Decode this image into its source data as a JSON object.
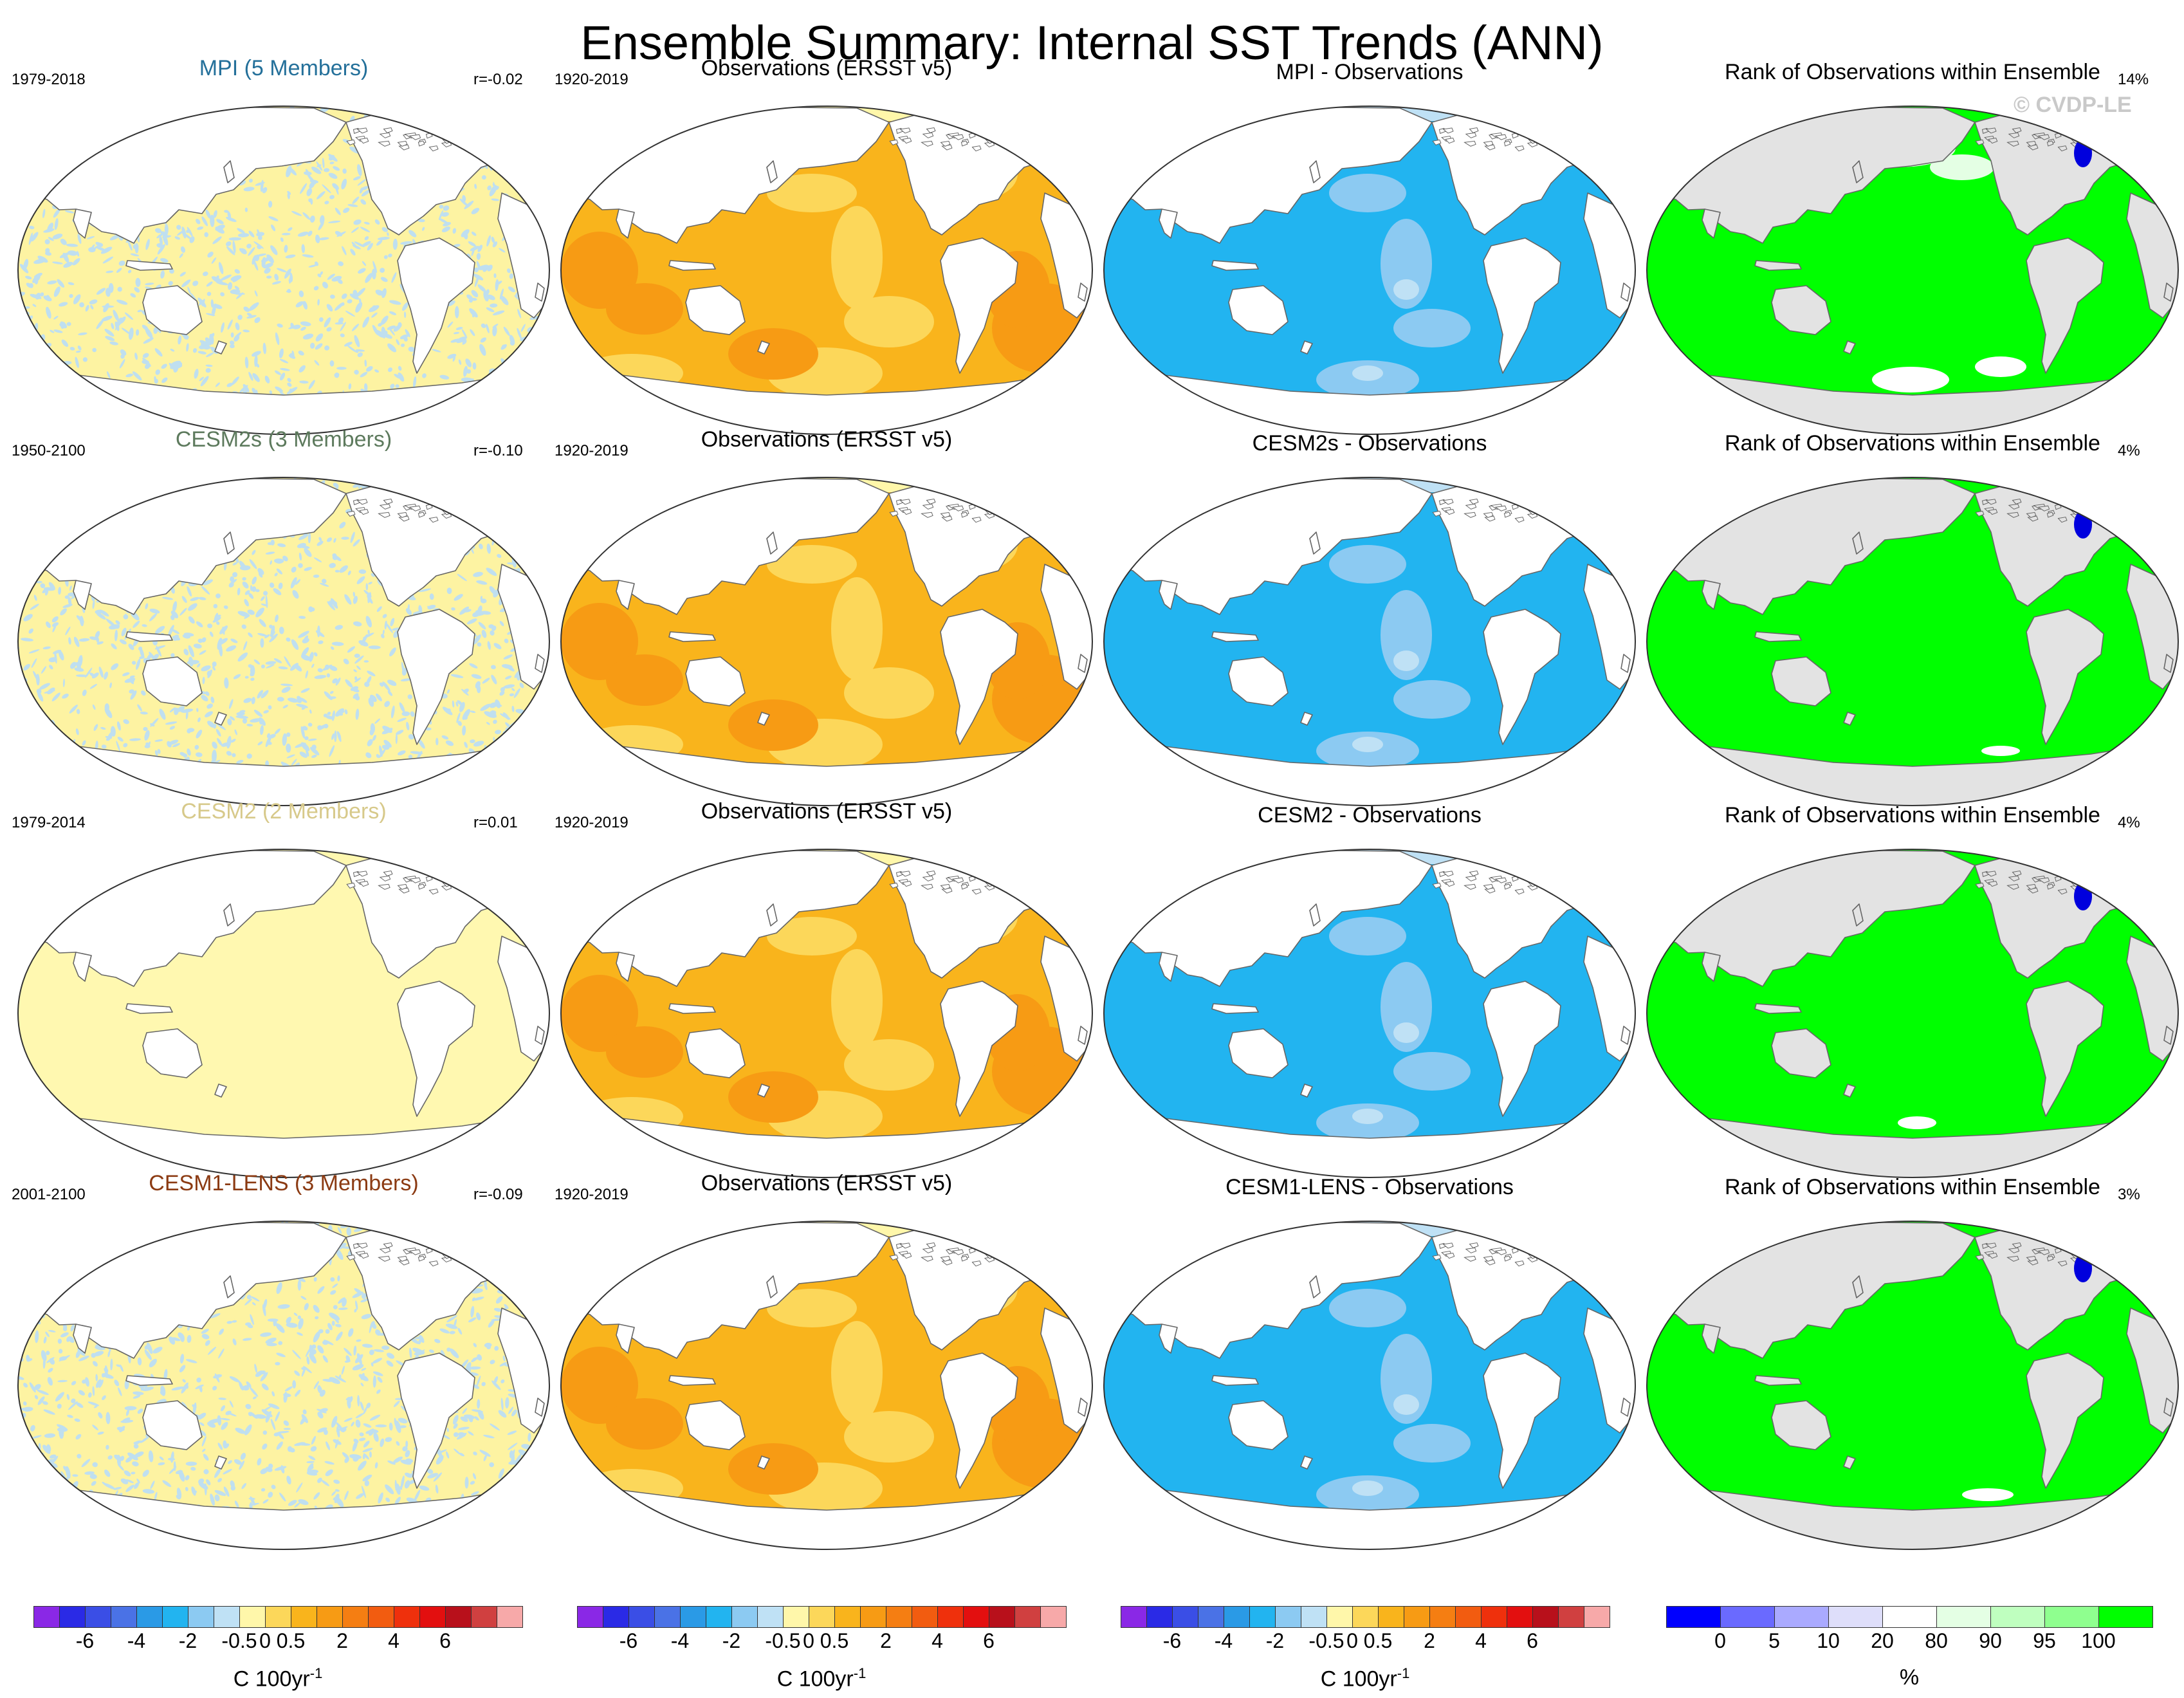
{
  "title": "Ensemble Summary: Internal SST Trends (ANN)",
  "watermark": "© CVDP-LE",
  "rows": [
    {
      "model_title": "MPI (5 Members)",
      "model_color": "#24709a",
      "model_period": "1979-2018",
      "model_r": "r=-0.02",
      "model_pattern": "noisy",
      "obs_title": "Observations (ERSST v5)",
      "obs_period": "1920-2019",
      "diff_title": "MPI - Observations",
      "rank_title": "Rank of Observations within Ensemble",
      "rank_pct": "14%",
      "rank_variant": "mpi"
    },
    {
      "model_title": "CESM2s (3 Members)",
      "model_color": "#5d7a5d",
      "model_period": "1950-2100",
      "model_r": "r=-0.10",
      "model_pattern": "noisy",
      "obs_title": "Observations (ERSST v5)",
      "obs_period": "1920-2019",
      "diff_title": "CESM2s - Observations",
      "rank_title": "Rank of Observations within Ensemble",
      "rank_pct": "4%",
      "rank_variant": "cesm2s"
    },
    {
      "model_title": "CESM2 (2 Members)",
      "model_color": "#d7c98a",
      "model_period": "1979-2014",
      "model_r": "r=0.01",
      "model_pattern": "flat",
      "obs_title": "Observations (ERSST v5)",
      "obs_period": "1920-2019",
      "diff_title": "CESM2 - Observations",
      "rank_title": "Rank of Observations within Ensemble",
      "rank_pct": "4%",
      "rank_variant": "cesm2"
    },
    {
      "model_title": "CESM1-LENS (3 Members)",
      "model_color": "#8b3a12",
      "model_period": "2001-2100",
      "model_r": "r=-0.09",
      "model_pattern": "noisy",
      "obs_title": "Observations (ERSST v5)",
      "obs_period": "1920-2019",
      "diff_title": "CESM1-LENS - Observations",
      "rank_title": "Rank of Observations within Ensemble",
      "rank_pct": "3%",
      "rank_variant": "lens"
    }
  ],
  "colorbar_trend": {
    "colors": [
      "#8a28e6",
      "#2a2ae6",
      "#3a4ee6",
      "#4a72e6",
      "#2a9ae6",
      "#22b4f0",
      "#8ccaf2",
      "#bfe1f5",
      "#fff7aa",
      "#fcd75a",
      "#f9b41c",
      "#f79b14",
      "#f57e12",
      "#f25c10",
      "#ef300c",
      "#e30f0f",
      "#b8101b",
      "#d04040",
      "#f7a9a9"
    ],
    "ticks": [
      "-6",
      "-4",
      "-2",
      "-0.5",
      "0",
      "0.5",
      "2",
      "4",
      "6"
    ],
    "label": "C 100yr",
    "label_sup": "-1"
  },
  "colorbar_rank": {
    "colors": [
      "#0000ff",
      "#6a6aff",
      "#aaaaff",
      "#dedefa",
      "#ffffff",
      "#e4ffe4",
      "#bfffbf",
      "#8fff8f",
      "#00ff00"
    ],
    "ticks": [
      "0",
      "5",
      "10",
      "20",
      "80",
      "90",
      "95",
      "100"
    ],
    "label": "%"
  },
  "colors": {
    "land": "#ffffff",
    "coast": "#666666",
    "rank_land": "#e3e3e3",
    "model_flat": "#fff8b0",
    "model_yellow": "#fdf3a2",
    "model_blue": "#bfdff0",
    "obs_base": "#f9b41c",
    "obs_light": "#fcd75a",
    "obs_dark": "#f79b14",
    "obs_cool": "#5aa9ef",
    "diff_base": "#22b4f0",
    "diff_light": "#8ccaf2",
    "diff_pale": "#bfe1f5",
    "diff_warm": "#fcd75a",
    "rank_green": "#00ff00",
    "rank_white": "#ffffff",
    "rank_blue": "#0000dd"
  }
}
